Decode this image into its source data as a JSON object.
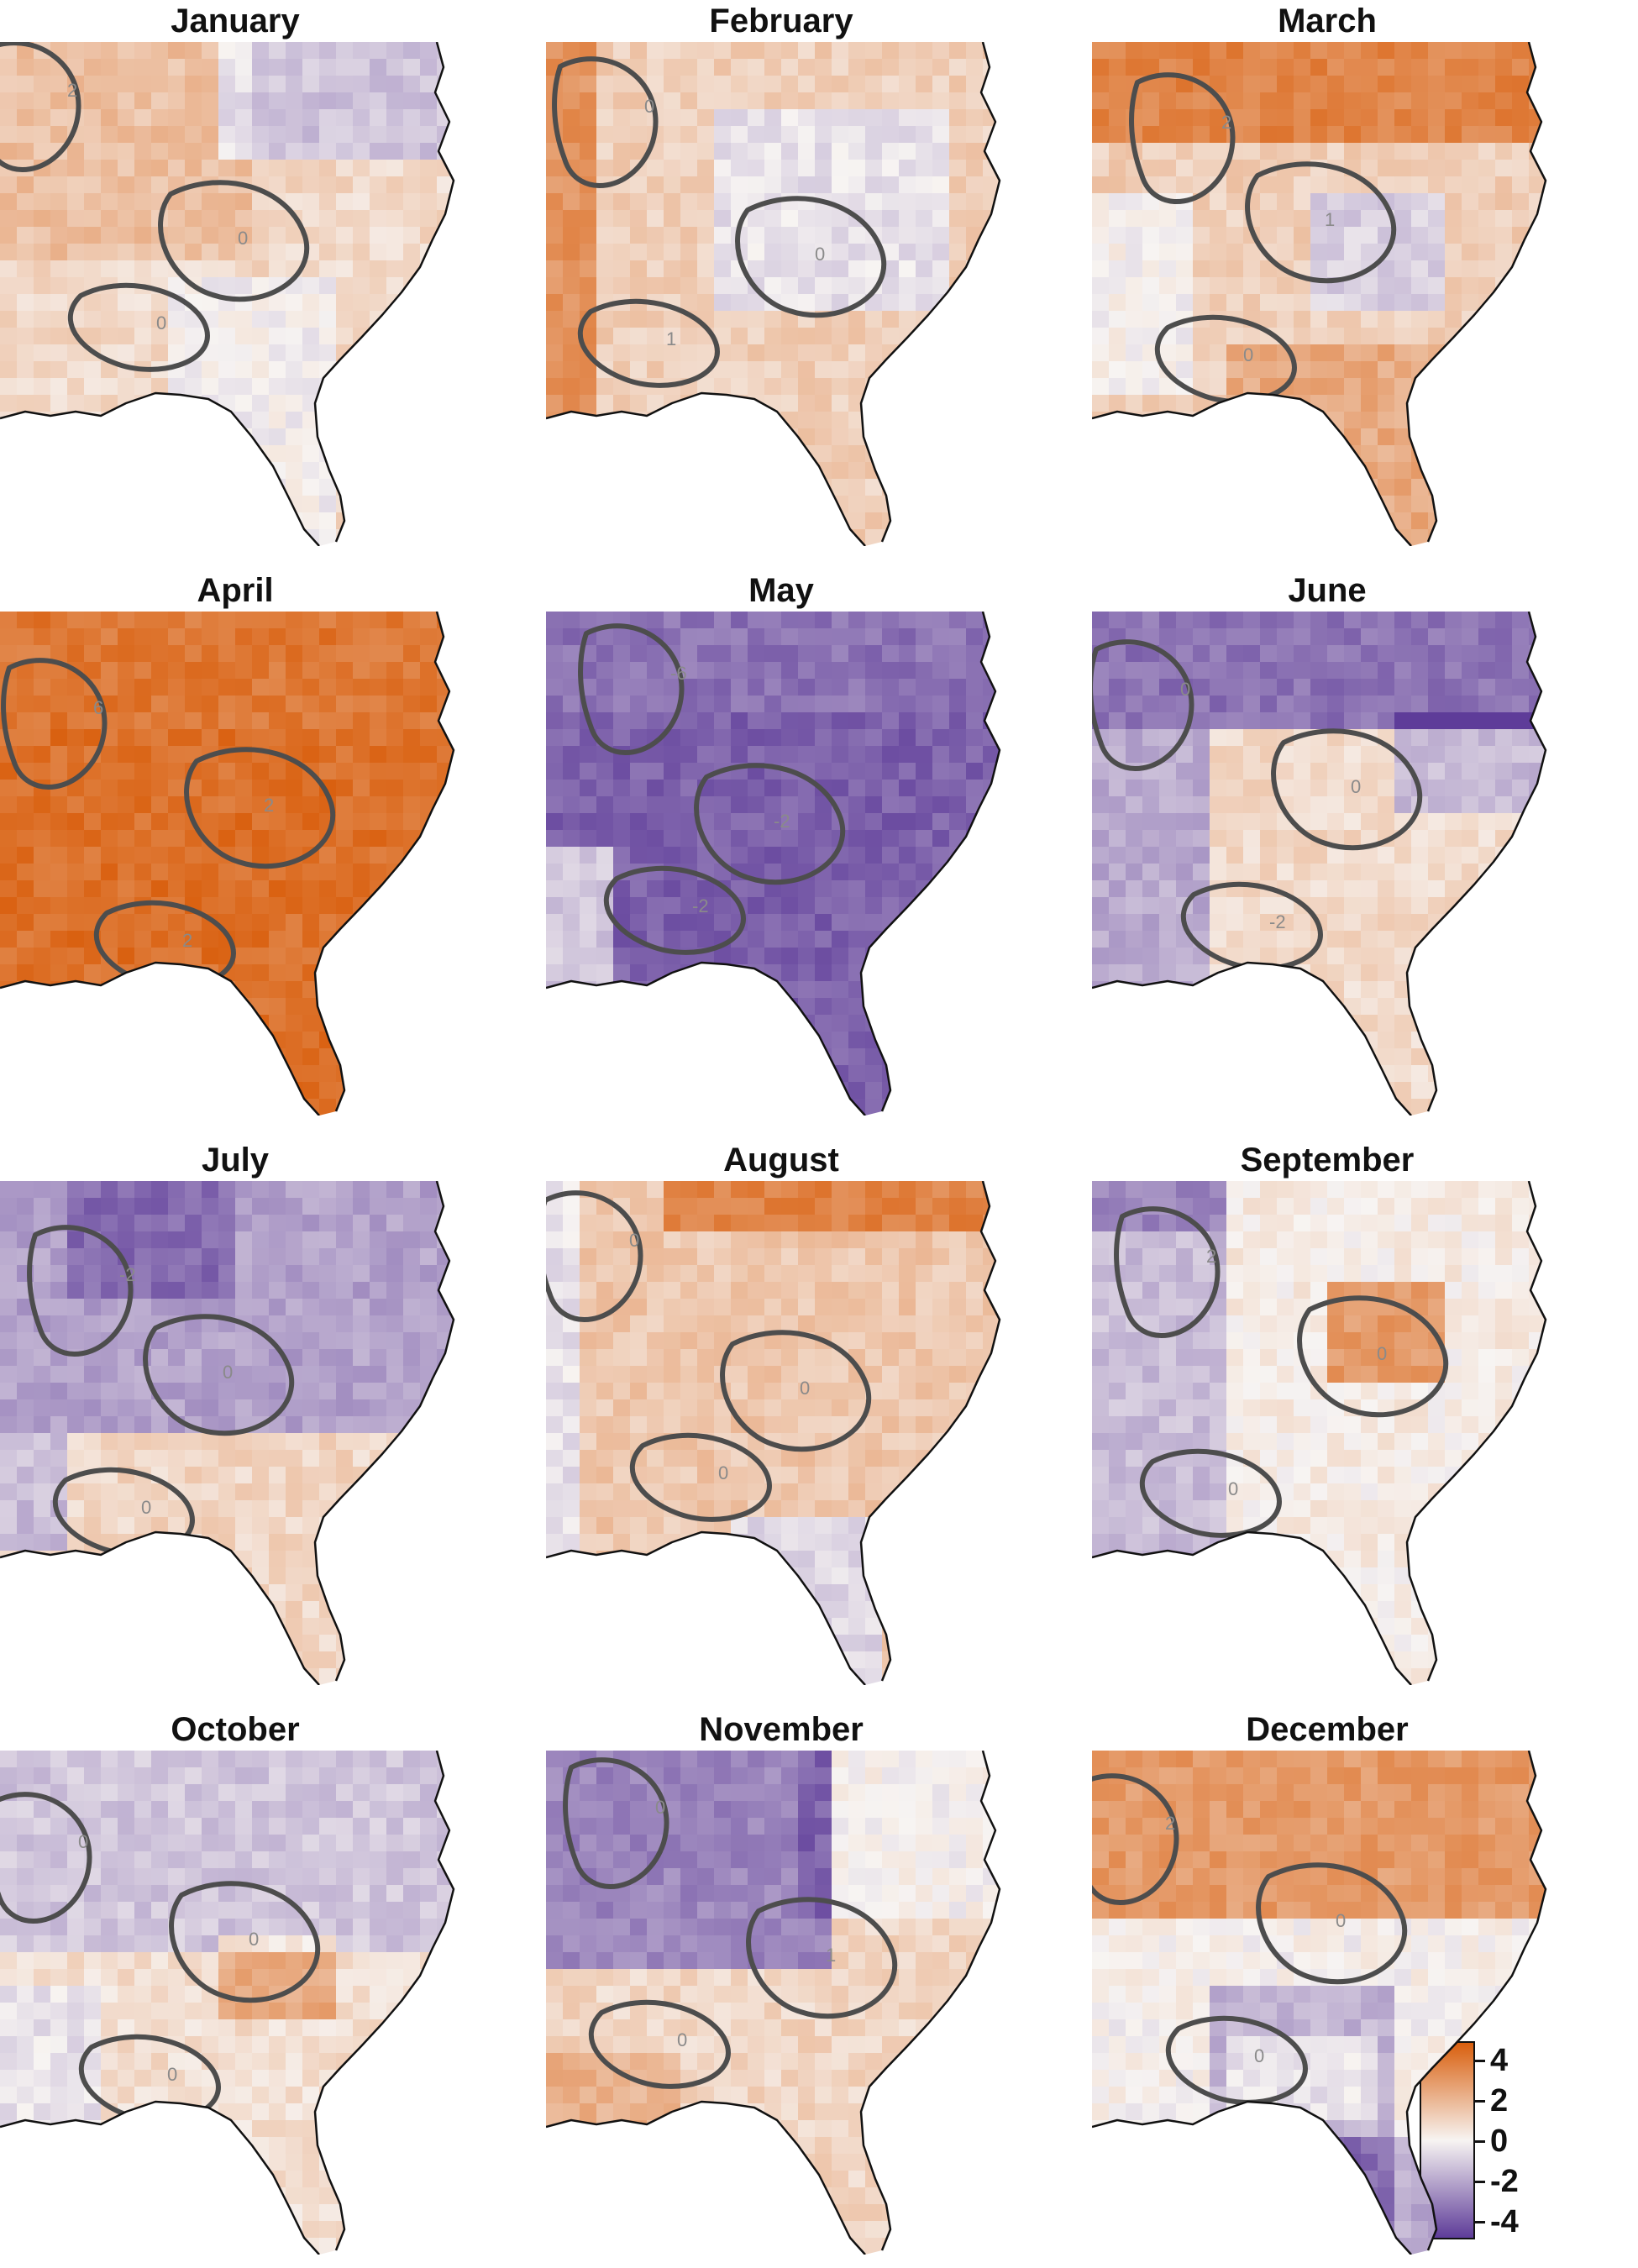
{
  "colors": {
    "positive": "#d95f0e",
    "neutral": "#f7f4f2",
    "negative": "#5e3c99",
    "contour": "#4d4d4d",
    "coastline": "#111111"
  },
  "panels": [
    {
      "title": "January",
      "pattern": "Jan",
      "contours": [
        "2",
        "0",
        "0"
      ]
    },
    {
      "title": "February",
      "pattern": "Feb",
      "contours": [
        "0",
        "0",
        "1"
      ]
    },
    {
      "title": "March",
      "pattern": "Mar",
      "contours": [
        "2",
        "1",
        "0"
      ]
    },
    {
      "title": "April",
      "pattern": "Apr",
      "contours": [
        "6",
        "2",
        "2"
      ]
    },
    {
      "title": "May",
      "pattern": "May",
      "contours": [
        "-6",
        "-2",
        "-2"
      ]
    },
    {
      "title": "June",
      "pattern": "Jun",
      "contours": [
        "0",
        "0",
        "-2"
      ]
    },
    {
      "title": "July",
      "pattern": "Jul",
      "contours": [
        "-2",
        "0",
        "0"
      ]
    },
    {
      "title": "August",
      "pattern": "Aug",
      "contours": [
        "0",
        "0",
        "0"
      ]
    },
    {
      "title": "September",
      "pattern": "Sep",
      "contours": [
        "2",
        "0",
        "0"
      ]
    },
    {
      "title": "October",
      "pattern": "Oct",
      "contours": [
        "0",
        "0",
        "0"
      ]
    },
    {
      "title": "November",
      "pattern": "Nov",
      "contours": [
        "0",
        "1",
        "0"
      ]
    },
    {
      "title": "December",
      "pattern": "Dec",
      "contours": [
        "2",
        "0",
        "0"
      ]
    }
  ],
  "legend": {
    "ticks": [
      "4",
      "2",
      "0",
      "-2",
      "-4"
    ]
  }
}
